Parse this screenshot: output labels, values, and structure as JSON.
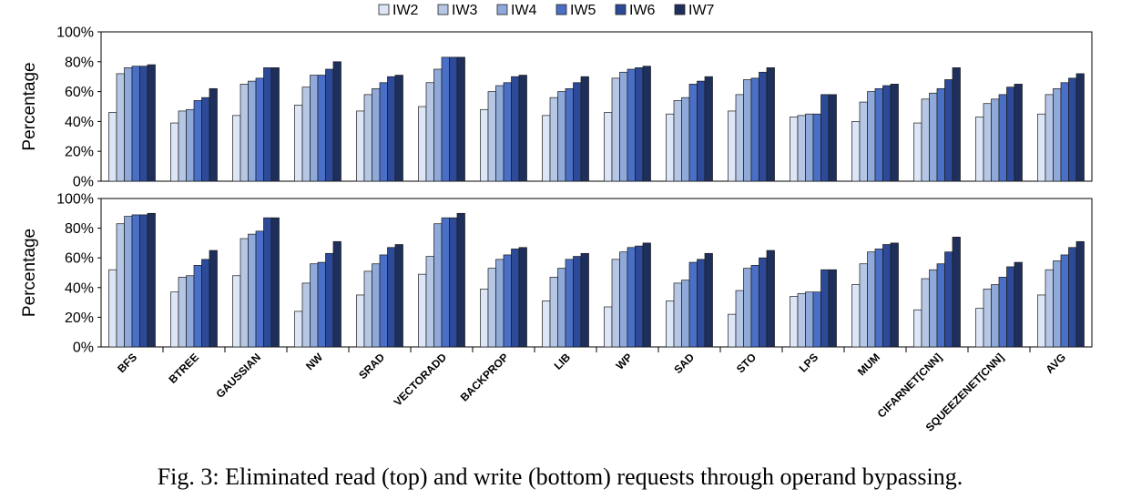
{
  "caption": "Fig. 3: Eliminated read (top) and write (bottom) requests through operand bypassing.",
  "colors": [
    "#dce6f6",
    "#b6c7e6",
    "#8fa9da",
    "#4a6fc6",
    "#2c4a98",
    "#1f2f5c"
  ],
  "chart_data": [
    {
      "type": "bar",
      "title": "",
      "xlabel": "",
      "ylabel": "Percentage",
      "ylim": [
        0,
        100
      ],
      "yticks": [
        "0%",
        "20%",
        "40%",
        "60%",
        "80%",
        "100%"
      ],
      "grid": false,
      "legend_position": "top-center",
      "categories": [
        "BFS",
        "BTREE",
        "GAUSSIAN",
        "NW",
        "SRAD",
        "VECTORADD",
        "BACKPROP",
        "LIB",
        "WP",
        "SAD",
        "STO",
        "LPS",
        "MUM",
        "CIFARNET[CNN]",
        "SQUEEZENET[CNN]",
        "AVG"
      ],
      "series": [
        {
          "name": "IW2",
          "values": [
            46,
            39,
            44,
            51,
            47,
            50,
            48,
            44,
            46,
            45,
            47,
            43,
            40,
            39,
            43,
            45
          ]
        },
        {
          "name": "IW3",
          "values": [
            72,
            47,
            65,
            63,
            58,
            66,
            60,
            56,
            69,
            54,
            58,
            44,
            53,
            55,
            52,
            58
          ]
        },
        {
          "name": "IW4",
          "values": [
            76,
            48,
            67,
            71,
            62,
            75,
            64,
            60,
            73,
            56,
            68,
            45,
            60,
            59,
            55,
            62
          ]
        },
        {
          "name": "IW5",
          "values": [
            77,
            54,
            69,
            71,
            66,
            83,
            66,
            62,
            75,
            65,
            69,
            45,
            62,
            62,
            58,
            66
          ]
        },
        {
          "name": "IW6",
          "values": [
            77,
            56,
            76,
            75,
            70,
            83,
            70,
            66,
            76,
            67,
            73,
            58,
            64,
            68,
            63,
            69
          ]
        },
        {
          "name": "IW7",
          "values": [
            78,
            62,
            76,
            80,
            71,
            83,
            71,
            70,
            77,
            70,
            76,
            58,
            65,
            76,
            65,
            72
          ]
        }
      ]
    },
    {
      "type": "bar",
      "title": "",
      "xlabel": "",
      "ylabel": "Percentage",
      "ylim": [
        0,
        100
      ],
      "yticks": [
        "0%",
        "20%",
        "40%",
        "60%",
        "80%",
        "100%"
      ],
      "grid": false,
      "categories": [
        "BFS",
        "BTREE",
        "GAUSSIAN",
        "NW",
        "SRAD",
        "VECTORADD",
        "BACKPROP",
        "LIB",
        "WP",
        "SAD",
        "STO",
        "LPS",
        "MUM",
        "CIFARNET[CNN]",
        "SQUEEZENET[CNN]",
        "AVG"
      ],
      "series": [
        {
          "name": "IW2",
          "values": [
            52,
            37,
            48,
            24,
            35,
            49,
            39,
            31,
            27,
            31,
            22,
            34,
            42,
            25,
            26,
            35
          ]
        },
        {
          "name": "IW3",
          "values": [
            83,
            47,
            73,
            43,
            51,
            61,
            53,
            47,
            59,
            43,
            38,
            36,
            56,
            46,
            39,
            52
          ]
        },
        {
          "name": "IW4",
          "values": [
            88,
            48,
            76,
            56,
            56,
            83,
            59,
            53,
            64,
            45,
            53,
            37,
            64,
            52,
            42,
            58
          ]
        },
        {
          "name": "IW5",
          "values": [
            89,
            55,
            78,
            57,
            62,
            87,
            62,
            59,
            67,
            57,
            55,
            37,
            66,
            56,
            47,
            62
          ]
        },
        {
          "name": "IW6",
          "values": [
            89,
            59,
            87,
            63,
            67,
            87,
            66,
            61,
            68,
            59,
            60,
            52,
            69,
            64,
            54,
            67
          ]
        },
        {
          "name": "IW7",
          "values": [
            90,
            65,
            87,
            71,
            69,
            90,
            67,
            63,
            70,
            63,
            65,
            52,
            70,
            74,
            57,
            71
          ]
        }
      ]
    }
  ]
}
